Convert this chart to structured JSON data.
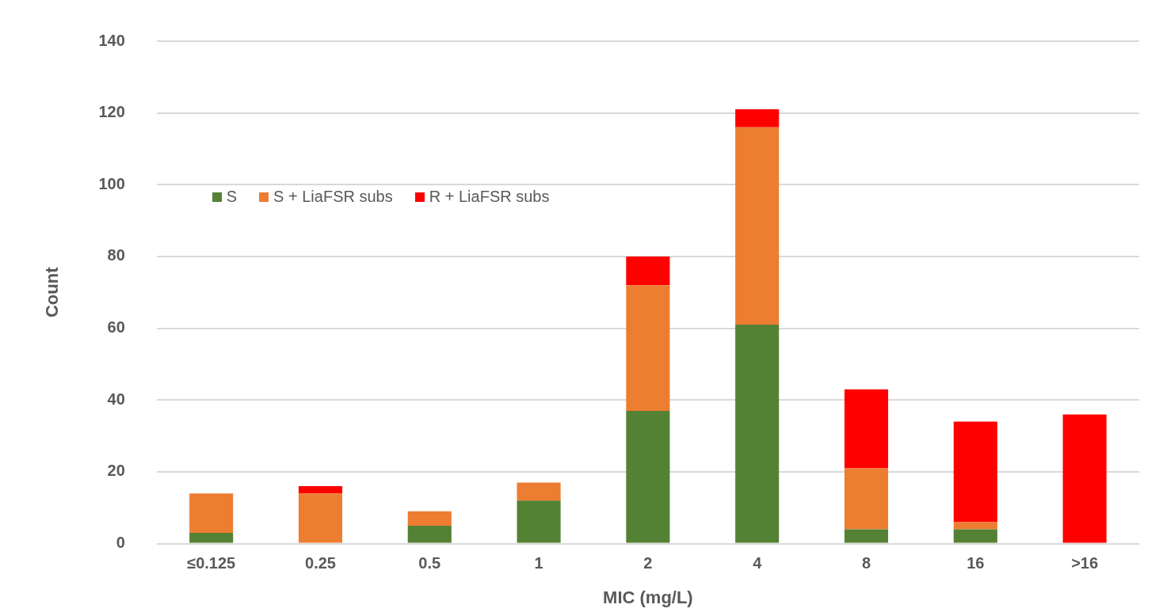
{
  "chart_data": {
    "type": "bar",
    "stacked": true,
    "xlabel": "MIC (mg/L)",
    "ylabel": "Count",
    "categories": [
      "≤0.125",
      "0.25",
      "0.5",
      "1",
      "2",
      "4",
      "8",
      "16",
      ">16"
    ],
    "series": [
      {
        "name": "S",
        "color": "#548235",
        "values": [
          3,
          0,
          5,
          12,
          37,
          61,
          4,
          4,
          0
        ]
      },
      {
        "name": "S + LiaFSR subs",
        "color": "#ed7d31",
        "values": [
          11,
          14,
          4,
          5,
          35,
          55,
          17,
          2,
          0
        ]
      },
      {
        "name": "R + LiaFSR subs",
        "color": "#ff0000",
        "values": [
          0,
          2,
          0,
          0,
          8,
          5,
          22,
          28,
          36
        ]
      }
    ],
    "ylim": [
      0,
      140
    ],
    "yticks": [
      0,
      20,
      40,
      60,
      80,
      100,
      120,
      140
    ],
    "grid": "y",
    "legend": "top left"
  }
}
